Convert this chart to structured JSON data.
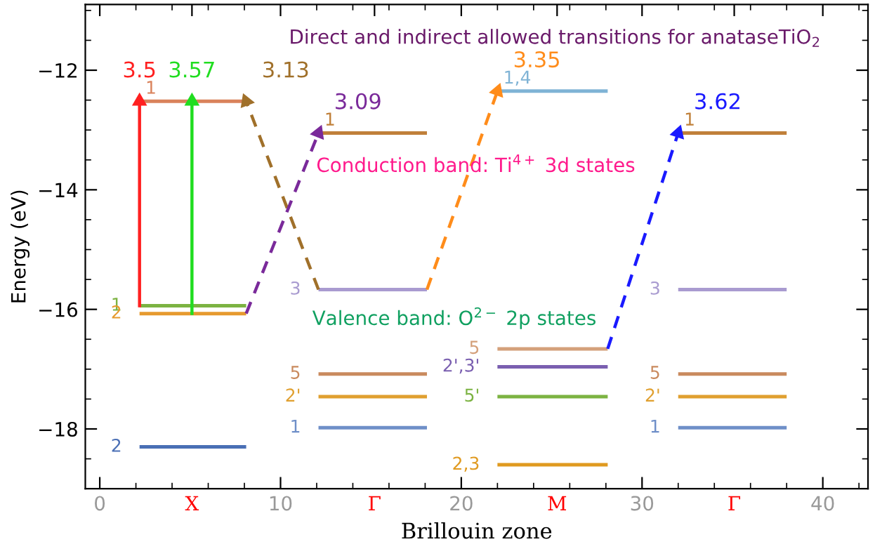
{
  "chart_data": {
    "type": "line",
    "title": "Direct and indirect allowed transitions for anataseTiO$_{2}$",
    "xlabel": "Brillouin zone",
    "ylabel": "Energy (eV)",
    "xlim": [
      -0.8,
      42.5
    ],
    "ylim": [
      -19,
      -10.9
    ],
    "xticks": [
      0,
      {
        "value": 5.1,
        "label": "X"
      },
      10,
      {
        "value": 15.2,
        "label": "Γ"
      },
      20,
      {
        "value": 25.3,
        "label": "M"
      },
      30,
      {
        "value": 35.1,
        "label": "Γ"
      },
      40
    ],
    "yticks": [
      -18,
      -16,
      -14,
      -12
    ],
    "grid": false,
    "legend": false,
    "annotations": [
      "Conduction band: Ti$^{4+}$ 3d states",
      "Valence band: O$^{2−}$ 2p states"
    ],
    "series": [
      {
        "name": "1",
        "color": "#d9825b",
        "x": [
          2.2,
          8.1
        ],
        "values": [
          -12.52,
          -12.52
        ]
      },
      {
        "name": "1",
        "color": "#7cb342",
        "x": [
          2.2,
          8.1
        ],
        "values": [
          -15.94,
          -15.94
        ]
      },
      {
        "name": "2",
        "color": "#e69a2e",
        "x": [
          2.2,
          8.1
        ],
        "values": [
          -16.07,
          -16.07
        ]
      },
      {
        "name": "2",
        "color": "#4a6fb5",
        "x": [
          2.2,
          8.1
        ],
        "values": [
          -18.3,
          -18.3
        ]
      },
      {
        "name": "1",
        "color": "#c0803a",
        "x": [
          12.1,
          18.1
        ],
        "values": [
          -13.05,
          -13.05
        ]
      },
      {
        "name": "3",
        "color": "#a99bd0",
        "x": [
          12.1,
          18.1
        ],
        "values": [
          -15.67,
          -15.67
        ]
      },
      {
        "name": "5",
        "color": "#c98a5e",
        "x": [
          12.1,
          18.1
        ],
        "values": [
          -17.08,
          -17.08
        ]
      },
      {
        "name": "2'",
        "color": "#e0a030",
        "x": [
          12.1,
          18.1
        ],
        "values": [
          -17.46,
          -17.46
        ]
      },
      {
        "name": "1",
        "color": "#6f8fc8",
        "x": [
          12.1,
          18.1
        ],
        "values": [
          -17.98,
          -17.98
        ]
      },
      {
        "name": "1,4",
        "color": "#7fb3d5",
        "x": [
          22.0,
          28.1
        ],
        "values": [
          -12.35,
          -12.35
        ]
      },
      {
        "name": "5",
        "color": "#d4a07a",
        "x": [
          22.0,
          28.1
        ],
        "values": [
          -16.66,
          -16.66
        ]
      },
      {
        "name": "2',3'",
        "color": "#7a5fb0",
        "x": [
          22.0,
          28.1
        ],
        "values": [
          -16.96,
          -16.96
        ]
      },
      {
        "name": "5'",
        "color": "#7cb342",
        "x": [
          22.0,
          28.1
        ],
        "values": [
          -17.46,
          -17.46
        ]
      },
      {
        "name": "2,3",
        "color": "#e09a20",
        "x": [
          22.0,
          28.1
        ],
        "values": [
          -18.6,
          -18.6
        ]
      },
      {
        "name": "1",
        "color": "#c0803a",
        "x": [
          32.0,
          38.0
        ],
        "values": [
          -13.05,
          -13.05
        ]
      },
      {
        "name": "3",
        "color": "#a99bd0",
        "x": [
          32.0,
          38.0
        ],
        "values": [
          -15.67,
          -15.67
        ]
      },
      {
        "name": "5",
        "color": "#c98a5e",
        "x": [
          32.0,
          38.0
        ],
        "values": [
          -17.08,
          -17.08
        ]
      },
      {
        "name": "2'",
        "color": "#e0a030",
        "x": [
          32.0,
          38.0
        ],
        "values": [
          -17.46,
          -17.46
        ]
      },
      {
        "name": "1",
        "color": "#6f8fc8",
        "x": [
          32.0,
          38.0
        ],
        "values": [
          -17.98,
          -17.98
        ]
      },
      {
        "name": "3.5",
        "color": "#ff2020",
        "marker": "triangle",
        "line_style": "solid",
        "x": [
          2.2,
          2.2
        ],
        "values": [
          -15.94,
          -12.52
        ]
      },
      {
        "name": "3.57",
        "color": "#20dd20",
        "marker": "triangle",
        "line_style": "solid",
        "x": [
          5.1,
          5.1
        ],
        "values": [
          -16.07,
          -12.52
        ]
      },
      {
        "name": "3.13",
        "color": "#a0702a",
        "marker": "triangle",
        "line_style": "dashed",
        "x": [
          12.1,
          8.1
        ],
        "values": [
          -15.67,
          -12.52
        ]
      },
      {
        "name": "3.09",
        "color": "#7a2a9a",
        "marker": "triangle",
        "line_style": "dashed",
        "x": [
          8.1,
          12.1
        ],
        "values": [
          -16.07,
          -13.05
        ]
      },
      {
        "name": "3.35",
        "color": "#ff8c1a",
        "marker": "triangle",
        "line_style": "dashed",
        "x": [
          18.1,
          22.0
        ],
        "values": [
          -15.67,
          -12.35
        ]
      },
      {
        "name": "3.62",
        "color": "#1a1aff",
        "marker": "triangle",
        "line_style": "dashed",
        "x": [
          28.1,
          32.0
        ],
        "values": [
          -16.66,
          -13.05
        ]
      }
    ]
  }
}
